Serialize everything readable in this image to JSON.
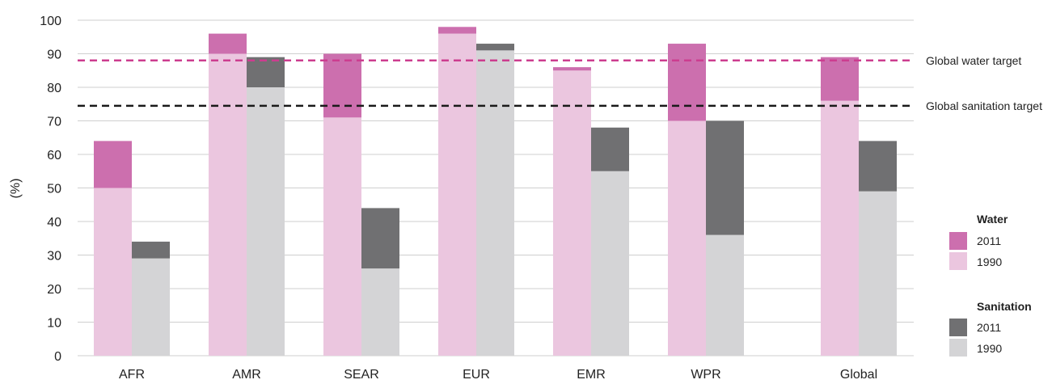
{
  "chart_data": {
    "type": "bar",
    "ylabel": "(%)",
    "ylim": [
      0,
      100
    ],
    "yticks": [
      "0",
      "10",
      "20",
      "30",
      "40",
      "50",
      "60",
      "70",
      "80",
      "90",
      "100"
    ],
    "grid": true,
    "legend_position": "right",
    "categories": [
      "AFR",
      "AMR",
      "SEAR",
      "EUR",
      "EMR",
      "WPR",
      "Global"
    ],
    "water": {
      "title": "Water",
      "y1990": [
        50,
        90,
        71,
        96,
        85,
        70,
        76
      ],
      "y2011": [
        64,
        96,
        90,
        98,
        86,
        93,
        89
      ]
    },
    "sanitation": {
      "title": "Sanitation",
      "y1990": [
        29,
        80,
        26,
        91,
        55,
        36,
        49
      ],
      "y2011": [
        34,
        89,
        44,
        93,
        68,
        70,
        64
      ]
    },
    "legend": {
      "water_title": "Water",
      "water_2011": "2011",
      "water_1990": "1990",
      "sanitation_title": "Sanitation",
      "sanitation_2011": "2011",
      "sanitation_1990": "1990"
    },
    "reference_lines": [
      {
        "label": "Global water target",
        "value": 88,
        "color": "#cc3d8f"
      },
      {
        "label": "Global sanitation target",
        "value": 74.5,
        "color": "#1a1a1a"
      }
    ],
    "colors": {
      "water_2011": "#cc6fae",
      "water_1990": "#ebc6df",
      "sanitation_2011": "#707072",
      "sanitation_1990": "#d4d4d6",
      "grid": "#cfcfcf"
    }
  }
}
